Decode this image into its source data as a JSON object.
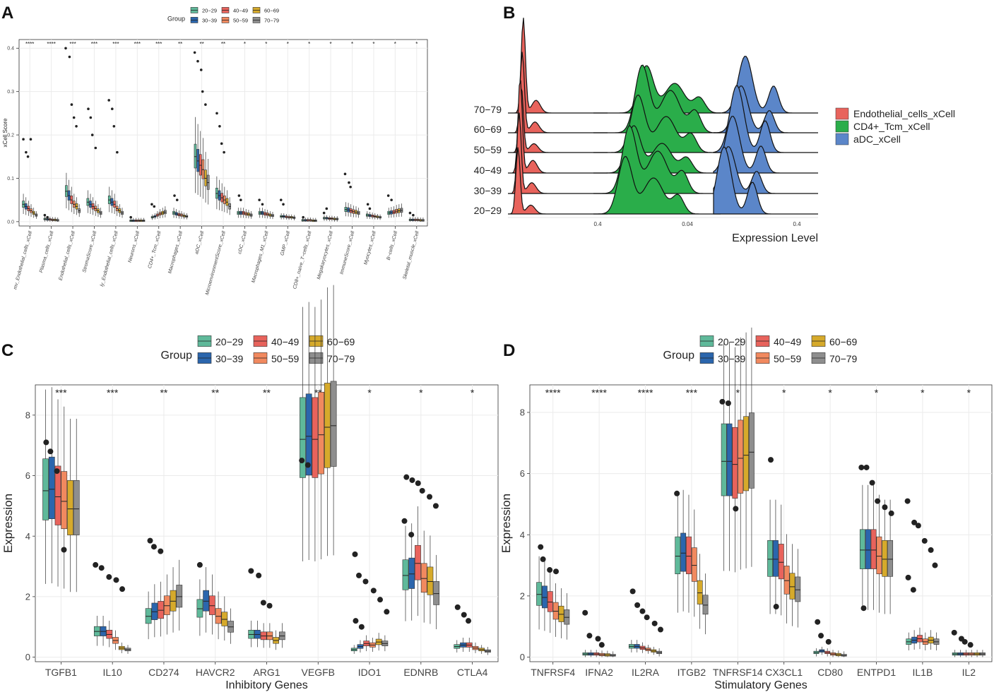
{
  "palette": {
    "20-29": "#5fb99a",
    "30-39": "#2b66ad",
    "40-49": "#e8635c",
    "50-59": "#f1895f",
    "60-69": "#d6aa2b",
    "70-79": "#8e8e8e",
    "Endothelial_cells_xCell": "#e8635c",
    "CD4+_Tcm_xCell": "#2aad4a",
    "aDC_xCell": "#5b86c9"
  },
  "chart_data": [
    {
      "panel": "A",
      "type": "box",
      "legend_title": "Group",
      "groups": [
        "20−29",
        "30−39",
        "40−49",
        "50−59",
        "60−69",
        "70−79"
      ],
      "xlabel": "",
      "ylabel": "xCell Score",
      "ylim": [
        -0.01,
        0.42
      ],
      "yticks": [
        "0.0",
        "0.1",
        "0.2",
        "0.3",
        "0.4"
      ],
      "categories": [
        "mv_Endothelial_cells_xCell",
        "Plasma_cells_xCell",
        "Endothelial_cells_xCell",
        "StromaScore_xCell",
        "ly_Endothelial_cells_xCell",
        "Neurons_xCell",
        "CD4+_Tcm_xCell",
        "Macrophages_xCell",
        "aDC_xCell",
        "MicroenvironmentScore_xCell",
        "cDC_xCell",
        "Macrophages_M1_xCell",
        "GMP_xCell",
        "CD8+_naive_T−cells_xCell",
        "Megakaryocytes_xCell",
        "ImmuneScore_xCell",
        "Myocytes_xCell",
        "B−cells_xCell",
        "Skeletal_muscle_xCell"
      ],
      "significance": [
        "****",
        "****",
        "***",
        "***",
        "***",
        "***",
        "***",
        "**",
        "**",
        "**",
        "*",
        "*",
        "*",
        "*",
        "*",
        "*",
        "*",
        "*",
        "*"
      ],
      "medians": [
        [
          0.04,
          0.035,
          0.03,
          0.025,
          0.02,
          0.015
        ],
        [
          0.006,
          0.005,
          0.005,
          0.004,
          0.004,
          0.003
        ],
        [
          0.07,
          0.06,
          0.05,
          0.04,
          0.035,
          0.025
        ],
        [
          0.045,
          0.04,
          0.035,
          0.03,
          0.025,
          0.02
        ],
        [
          0.05,
          0.045,
          0.04,
          0.03,
          0.025,
          0.02
        ],
        [
          0.002,
          0.002,
          0.002,
          0.002,
          0.002,
          0.002
        ],
        [
          0.01,
          0.012,
          0.015,
          0.018,
          0.02,
          0.022
        ],
        [
          0.02,
          0.018,
          0.016,
          0.015,
          0.013,
          0.012
        ],
        [
          0.15,
          0.14,
          0.13,
          0.12,
          0.1,
          0.09
        ],
        [
          0.065,
          0.06,
          0.055,
          0.05,
          0.045,
          0.035
        ],
        [
          0.02,
          0.02,
          0.02,
          0.018,
          0.017,
          0.015
        ],
        [
          0.02,
          0.02,
          0.018,
          0.017,
          0.015,
          0.014
        ],
        [
          0.012,
          0.012,
          0.011,
          0.01,
          0.01,
          0.009
        ],
        [
          0.003,
          0.003,
          0.003,
          0.003,
          0.002,
          0.002
        ],
        [
          0.008,
          0.008,
          0.007,
          0.007,
          0.006,
          0.006
        ],
        [
          0.028,
          0.027,
          0.025,
          0.023,
          0.022,
          0.02
        ],
        [
          0.015,
          0.014,
          0.013,
          0.012,
          0.011,
          0.01
        ],
        [
          0.02,
          0.021,
          0.022,
          0.024,
          0.025,
          0.026
        ],
        [
          0.004,
          0.004,
          0.004,
          0.004,
          0.003,
          0.003
        ]
      ],
      "outliers": [
        [
          0.19,
          0.16,
          0.15,
          0.19
        ],
        [
          0.015,
          0.01
        ],
        [
          0.4,
          0.38,
          0.27,
          0.24,
          0.22
        ],
        [
          0.26,
          0.24,
          0.2,
          0.17
        ],
        [
          0.28,
          0.26,
          0.22,
          0.16
        ],
        [
          0.01
        ],
        [
          0.04,
          0.035
        ],
        [
          0.06,
          0.05
        ],
        [
          0.39,
          0.37,
          0.35,
          0.3,
          0.27
        ],
        [
          0.25,
          0.22,
          0.18,
          0.16
        ],
        [
          0.06,
          0.05
        ],
        [
          0.05,
          0.04
        ],
        [
          0.05,
          0.04
        ],
        [
          0.01
        ],
        [
          0.02,
          0.03
        ],
        [
          0.11,
          0.09,
          0.08
        ],
        [
          0.04,
          0.03
        ],
        [
          0.06,
          0.05
        ],
        [
          0.02,
          0.015
        ]
      ]
    },
    {
      "panel": "B",
      "type": "ridgeline",
      "xlabel": "Expression Level",
      "xticks": [
        "0.4",
        "0.04",
        "0.4"
      ],
      "y_categories": [
        "20−29",
        "30−39",
        "40−49",
        "50−59",
        "60−69",
        "70−79"
      ],
      "series": [
        "Endothelial_cells_xCell",
        "CD4+_Tcm_xCell",
        "aDC_xCell"
      ]
    },
    {
      "panel": "C",
      "type": "box",
      "legend_title": "Group",
      "groups": [
        "20−29",
        "30−39",
        "40−49",
        "50−59",
        "60−69",
        "70−79"
      ],
      "xlabel": "Inhibitory Genes",
      "ylabel": "Expression",
      "ylim": [
        -0.15,
        9.0
      ],
      "yticks": [
        "0",
        "2",
        "4",
        "6",
        "8"
      ],
      "categories": [
        "TGFB1",
        "IL10",
        "CD274",
        "HAVCR2",
        "ARG1",
        "VEGFB",
        "IDO1",
        "EDNRB",
        "CTLA4"
      ],
      "significance": [
        "***",
        "***",
        "**",
        "**",
        "**",
        "**",
        "*",
        "*",
        "*"
      ],
      "medians": [
        [
          5.5,
          5.55,
          5.3,
          5.15,
          4.9,
          4.9
        ],
        [
          0.85,
          0.85,
          0.75,
          0.55,
          0.3,
          0.25
        ],
        [
          1.35,
          1.5,
          1.55,
          1.7,
          1.85,
          2.0
        ],
        [
          1.6,
          1.85,
          1.7,
          1.35,
          1.25,
          1.0
        ],
        [
          0.75,
          0.75,
          0.7,
          0.7,
          0.55,
          0.7
        ],
        [
          7.2,
          7.3,
          7.2,
          7.35,
          7.6,
          7.65
        ],
        [
          0.25,
          0.35,
          0.45,
          0.4,
          0.5,
          0.45
        ],
        [
          2.7,
          2.75,
          3.1,
          2.6,
          2.5,
          2.1
        ],
        [
          0.35,
          0.4,
          0.4,
          0.3,
          0.25,
          0.2
        ]
      ],
      "outliers": [
        [
          7.1,
          6.8,
          6.15,
          3.55
        ],
        [
          3.05,
          2.95,
          2.65,
          2.55,
          2.25
        ],
        [
          3.85,
          3.65,
          3.5
        ],
        [
          3.05
        ],
        [
          2.85,
          2.7,
          1.8,
          1.7
        ],
        [
          6.5,
          6.35
        ],
        [
          3.4,
          2.7,
          2.5,
          2.2,
          1.9,
          1.5,
          1.2,
          1.0
        ],
        [
          5.95,
          5.85,
          5.75,
          5.5,
          5.3,
          5.0,
          4.5,
          4.05
        ],
        [
          1.65,
          1.4,
          1.2
        ]
      ]
    },
    {
      "panel": "D",
      "type": "box",
      "legend_title": "Group",
      "groups": [
        "20−29",
        "30−39",
        "40−49",
        "50−59",
        "60−69",
        "70−79"
      ],
      "xlabel": "Stimulatory Genes",
      "ylabel": "Expression",
      "ylim": [
        -0.15,
        8.9
      ],
      "yticks": [
        "0",
        "2",
        "4",
        "6",
        "8"
      ],
      "categories": [
        "TNFRSF4",
        "IFNA2",
        "IL2RA",
        "ITGB2",
        "TNFRSF14",
        "CX3CL1",
        "CD80",
        "ENTPD1",
        "IL1B",
        "IL2"
      ],
      "significance": [
        "****",
        "****",
        "****",
        "***",
        "*",
        "*",
        "*",
        "*",
        "*",
        "*"
      ],
      "medians": [
        [
          2.05,
          1.95,
          1.8,
          1.5,
          1.4,
          1.3
        ],
        [
          0.1,
          0.1,
          0.1,
          0.08,
          0.07,
          0.05
        ],
        [
          0.35,
          0.35,
          0.3,
          0.25,
          0.2,
          0.15
        ],
        [
          3.3,
          3.4,
          3.3,
          3.0,
          2.1,
          1.7
        ],
        [
          6.4,
          6.4,
          6.3,
          6.5,
          6.6,
          6.7
        ],
        [
          3.2,
          3.2,
          3.1,
          2.5,
          2.3,
          2.2
        ],
        [
          0.15,
          0.2,
          0.15,
          0.1,
          0.08,
          0.05
        ],
        [
          3.5,
          3.5,
          3.5,
          3.3,
          3.2,
          3.2
        ],
        [
          0.5,
          0.55,
          0.6,
          0.5,
          0.55,
          0.5
        ],
        [
          0.1,
          0.1,
          0.1,
          0.1,
          0.1,
          0.1
        ]
      ],
      "outliers": [
        [
          3.6,
          3.2,
          2.85,
          2.8
        ],
        [
          1.45,
          0.7,
          0.6,
          0.4
        ],
        [
          2.15,
          1.7,
          1.5,
          1.3,
          1.1,
          0.9
        ],
        [
          5.35
        ],
        [
          8.35,
          8.3,
          4.85
        ],
        [
          6.45,
          1.65
        ],
        [
          1.15,
          0.7,
          0.5
        ],
        [
          6.2,
          6.2,
          5.7,
          5.1,
          4.9,
          4.7,
          1.6
        ],
        [
          5.1,
          4.4,
          4.3,
          3.8,
          3.5,
          3.0,
          2.6,
          2.2
        ],
        [
          0.8,
          0.6,
          0.5,
          0.4
        ]
      ]
    }
  ],
  "panel_labels": [
    "A",
    "B",
    "C",
    "D"
  ]
}
